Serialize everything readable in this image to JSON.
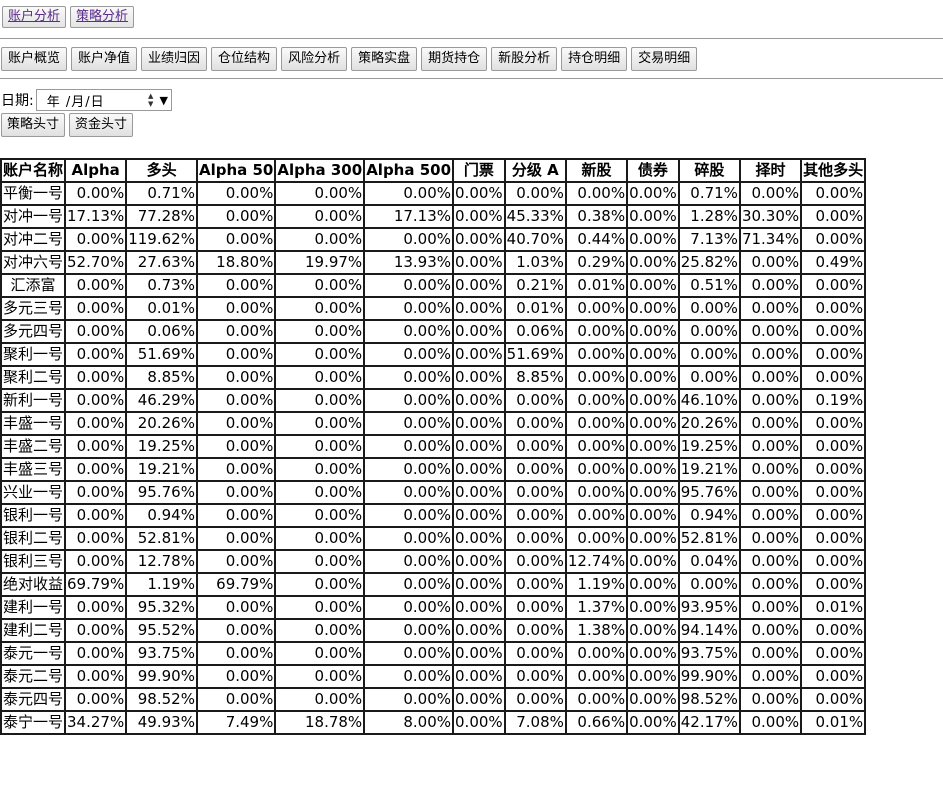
{
  "top_tabs": [
    "账户分析",
    "策略分析"
  ],
  "nav_buttons": [
    "账户概览",
    "账户净值",
    "业绩归因",
    "仓位结构",
    "风险分析",
    "策略实盘",
    "期货持仓",
    "新股分析",
    "持仓明细",
    "交易明细"
  ],
  "date": {
    "label": "日期:",
    "placeholder": "年 /月/日"
  },
  "sub_buttons": [
    "策略头寸",
    "资金头寸"
  ],
  "table": {
    "headers": [
      "账户名称",
      "Alpha",
      "多头",
      "Alpha 50",
      "Alpha 300",
      "Alpha 500",
      "门票",
      "分级 A",
      "新股",
      "债券",
      "碎股",
      "择时",
      "其他多头"
    ],
    "rows": [
      [
        "平衡一号",
        "0.00%",
        "0.71%",
        "0.00%",
        "0.00%",
        "0.00%",
        "0.00%",
        "0.00%",
        "0.00%",
        "0.00%",
        "0.71%",
        "0.00%",
        "0.00%"
      ],
      [
        "对冲一号",
        "17.13%",
        "77.28%",
        "0.00%",
        "0.00%",
        "17.13%",
        "0.00%",
        "45.33%",
        "0.38%",
        "0.00%",
        "1.28%",
        "30.30%",
        "0.00%"
      ],
      [
        "对冲二号",
        "0.00%",
        "119.62%",
        "0.00%",
        "0.00%",
        "0.00%",
        "0.00%",
        "40.70%",
        "0.44%",
        "0.00%",
        "7.13%",
        "71.34%",
        "0.00%"
      ],
      [
        "对冲六号",
        "52.70%",
        "27.63%",
        "18.80%",
        "19.97%",
        "13.93%",
        "0.00%",
        "1.03%",
        "0.29%",
        "0.00%",
        "25.82%",
        "0.00%",
        "0.49%"
      ],
      [
        "汇添富",
        "0.00%",
        "0.73%",
        "0.00%",
        "0.00%",
        "0.00%",
        "0.00%",
        "0.21%",
        "0.01%",
        "0.00%",
        "0.51%",
        "0.00%",
        "0.00%"
      ],
      [
        "多元三号",
        "0.00%",
        "0.01%",
        "0.00%",
        "0.00%",
        "0.00%",
        "0.00%",
        "0.01%",
        "0.00%",
        "0.00%",
        "0.00%",
        "0.00%",
        "0.00%"
      ],
      [
        "多元四号",
        "0.00%",
        "0.06%",
        "0.00%",
        "0.00%",
        "0.00%",
        "0.00%",
        "0.06%",
        "0.00%",
        "0.00%",
        "0.00%",
        "0.00%",
        "0.00%"
      ],
      [
        "聚利一号",
        "0.00%",
        "51.69%",
        "0.00%",
        "0.00%",
        "0.00%",
        "0.00%",
        "51.69%",
        "0.00%",
        "0.00%",
        "0.00%",
        "0.00%",
        "0.00%"
      ],
      [
        "聚利二号",
        "0.00%",
        "8.85%",
        "0.00%",
        "0.00%",
        "0.00%",
        "0.00%",
        "8.85%",
        "0.00%",
        "0.00%",
        "0.00%",
        "0.00%",
        "0.00%"
      ],
      [
        "新利一号",
        "0.00%",
        "46.29%",
        "0.00%",
        "0.00%",
        "0.00%",
        "0.00%",
        "0.00%",
        "0.00%",
        "0.00%",
        "46.10%",
        "0.00%",
        "0.19%"
      ],
      [
        "丰盛一号",
        "0.00%",
        "20.26%",
        "0.00%",
        "0.00%",
        "0.00%",
        "0.00%",
        "0.00%",
        "0.00%",
        "0.00%",
        "20.26%",
        "0.00%",
        "0.00%"
      ],
      [
        "丰盛二号",
        "0.00%",
        "19.25%",
        "0.00%",
        "0.00%",
        "0.00%",
        "0.00%",
        "0.00%",
        "0.00%",
        "0.00%",
        "19.25%",
        "0.00%",
        "0.00%"
      ],
      [
        "丰盛三号",
        "0.00%",
        "19.21%",
        "0.00%",
        "0.00%",
        "0.00%",
        "0.00%",
        "0.00%",
        "0.00%",
        "0.00%",
        "19.21%",
        "0.00%",
        "0.00%"
      ],
      [
        "兴业一号",
        "0.00%",
        "95.76%",
        "0.00%",
        "0.00%",
        "0.00%",
        "0.00%",
        "0.00%",
        "0.00%",
        "0.00%",
        "95.76%",
        "0.00%",
        "0.00%"
      ],
      [
        "银利一号",
        "0.00%",
        "0.94%",
        "0.00%",
        "0.00%",
        "0.00%",
        "0.00%",
        "0.00%",
        "0.00%",
        "0.00%",
        "0.94%",
        "0.00%",
        "0.00%"
      ],
      [
        "银利二号",
        "0.00%",
        "52.81%",
        "0.00%",
        "0.00%",
        "0.00%",
        "0.00%",
        "0.00%",
        "0.00%",
        "0.00%",
        "52.81%",
        "0.00%",
        "0.00%"
      ],
      [
        "银利三号",
        "0.00%",
        "12.78%",
        "0.00%",
        "0.00%",
        "0.00%",
        "0.00%",
        "0.00%",
        "12.74%",
        "0.00%",
        "0.04%",
        "0.00%",
        "0.00%"
      ],
      [
        "绝对收益",
        "69.79%",
        "1.19%",
        "69.79%",
        "0.00%",
        "0.00%",
        "0.00%",
        "0.00%",
        "1.19%",
        "0.00%",
        "0.00%",
        "0.00%",
        "0.00%"
      ],
      [
        "建利一号",
        "0.00%",
        "95.32%",
        "0.00%",
        "0.00%",
        "0.00%",
        "0.00%",
        "0.00%",
        "1.37%",
        "0.00%",
        "93.95%",
        "0.00%",
        "0.01%"
      ],
      [
        "建利二号",
        "0.00%",
        "95.52%",
        "0.00%",
        "0.00%",
        "0.00%",
        "0.00%",
        "0.00%",
        "1.38%",
        "0.00%",
        "94.14%",
        "0.00%",
        "0.00%"
      ],
      [
        "泰元一号",
        "0.00%",
        "93.75%",
        "0.00%",
        "0.00%",
        "0.00%",
        "0.00%",
        "0.00%",
        "0.00%",
        "0.00%",
        "93.75%",
        "0.00%",
        "0.00%"
      ],
      [
        "泰元二号",
        "0.00%",
        "99.90%",
        "0.00%",
        "0.00%",
        "0.00%",
        "0.00%",
        "0.00%",
        "0.00%",
        "0.00%",
        "99.90%",
        "0.00%",
        "0.00%"
      ],
      [
        "泰元四号",
        "0.00%",
        "98.52%",
        "0.00%",
        "0.00%",
        "0.00%",
        "0.00%",
        "0.00%",
        "0.00%",
        "0.00%",
        "98.52%",
        "0.00%",
        "0.00%"
      ],
      [
        "泰宁一号",
        "34.27%",
        "49.93%",
        "7.49%",
        "18.78%",
        "8.00%",
        "0.00%",
        "7.08%",
        "0.66%",
        "0.00%",
        "42.17%",
        "0.00%",
        "0.01%"
      ]
    ]
  }
}
